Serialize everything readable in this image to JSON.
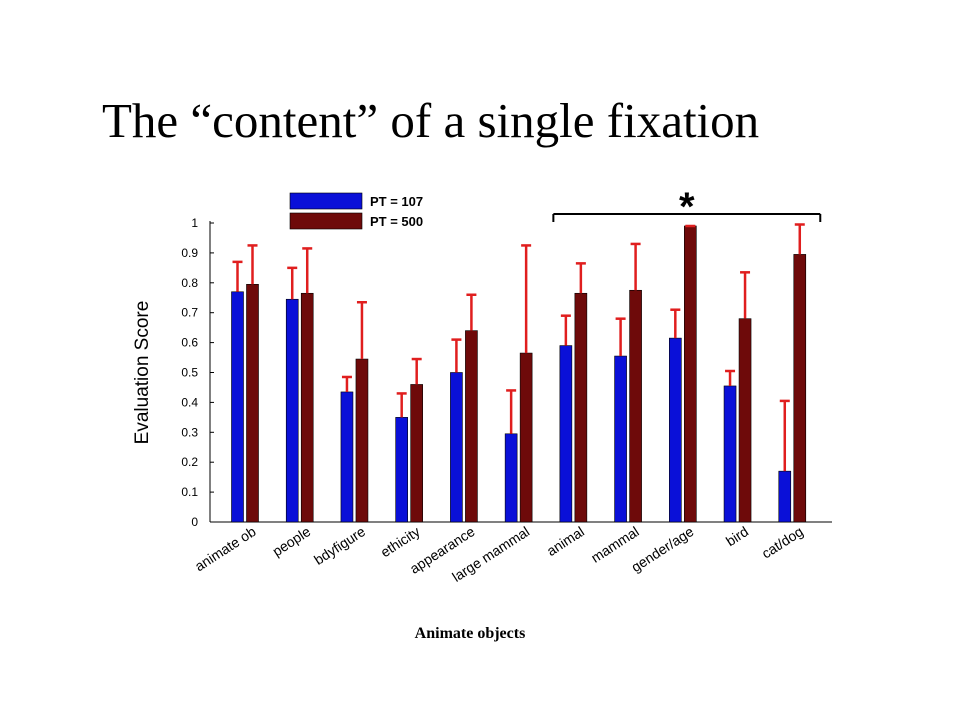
{
  "slide": {
    "title": "The “content” of a single fixation",
    "caption": "Animate objects"
  },
  "chart_data": {
    "type": "bar",
    "ylabel": "Evaluation Score",
    "xlabel": "",
    "ylim": [
      0,
      1
    ],
    "yticks": [
      "0",
      "0.1",
      "0.2",
      "0.3",
      "0.4",
      "0.5",
      "0.6",
      "0.7",
      "0.8",
      "0.9",
      "1"
    ],
    "categories": [
      "animate ob",
      "people",
      "bdyfigure",
      "ethicity",
      "appearance",
      "large mammal",
      "animal",
      "mammal",
      "gender/age",
      "bird",
      "cat/dog"
    ],
    "series": [
      {
        "name": "PT = 107",
        "color": "#0a10d8",
        "values": [
          0.77,
          0.745,
          0.435,
          0.35,
          0.5,
          0.295,
          0.59,
          0.555,
          0.615,
          0.455,
          0.17
        ],
        "error_upper": [
          0.87,
          0.85,
          0.485,
          0.43,
          0.61,
          0.44,
          0.69,
          0.68,
          0.71,
          0.505,
          0.405
        ]
      },
      {
        "name": "PT = 500",
        "color": "#6e0a0a",
        "values": [
          0.795,
          0.765,
          0.545,
          0.46,
          0.64,
          0.565,
          0.765,
          0.775,
          0.99,
          0.68,
          0.895
        ],
        "error_upper": [
          0.925,
          0.915,
          0.735,
          0.545,
          0.76,
          0.925,
          0.865,
          0.93,
          0.99,
          0.835,
          0.995
        ]
      }
    ],
    "error_bar_color": "#e01e1e",
    "legend_position": "top-left",
    "significance": {
      "label": "*",
      "from_category": "animal",
      "to_category": "cat/dog"
    }
  }
}
